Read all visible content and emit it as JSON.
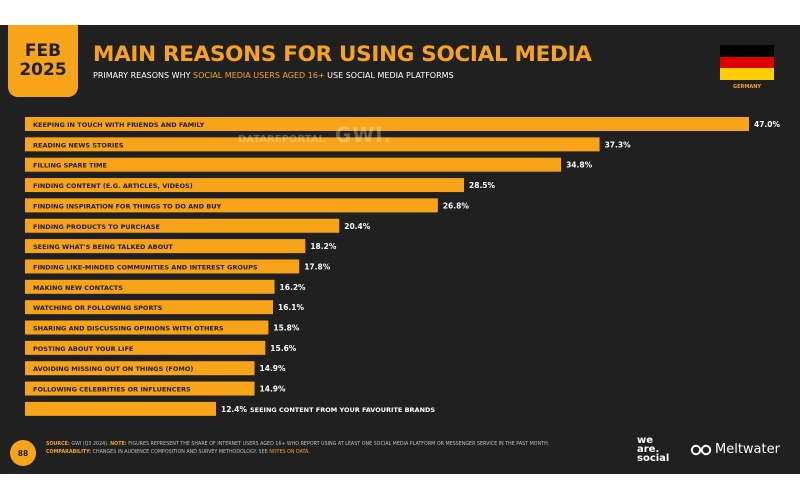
{
  "badge": {
    "month": "FEB",
    "year": "2025"
  },
  "title": "MAIN REASONS FOR USING SOCIAL MEDIA",
  "subtitle": {
    "before": "PRIMARY REASONS WHY ",
    "highlight": "SOCIAL MEDIA USERS AGED 16+",
    "after": " USE SOCIAL MEDIA PLATFORMS"
  },
  "country": "GERMANY",
  "flag_colors": [
    "#000000",
    "#dd0000",
    "#ffce00"
  ],
  "watermark": {
    "left": "DATAREPORTAL",
    "right": "GWI."
  },
  "chart_data": {
    "type": "bar",
    "orientation": "horizontal",
    "categories": [
      "KEEPING IN TOUCH WITH FRIENDS AND FAMILY",
      "READING NEWS STORIES",
      "FILLING SPARE TIME",
      "FINDING CONTENT (E.G. ARTICLES, VIDEOS)",
      "FINDING INSPIRATION FOR THINGS TO DO AND BUY",
      "FINDING PRODUCTS TO PURCHASE",
      "SEEING WHAT'S BEING TALKED ABOUT",
      "FINDING LIKE-MINDED COMMUNITIES AND INTEREST GROUPS",
      "MAKING NEW CONTACTS",
      "WATCHING OR FOLLOWING SPORTS",
      "SHARING AND DISCUSSING OPINIONS WITH OTHERS",
      "POSTING ABOUT YOUR LIFE",
      "AVOIDING MISSING OUT ON THINGS (FOMO)",
      "FOLLOWING CELEBRITIES OR INFLUENCERS",
      "SEEING CONTENT FROM YOUR FAVOURITE BRANDS"
    ],
    "values": [
      47.0,
      37.3,
      34.8,
      28.5,
      26.8,
      20.4,
      18.2,
      17.8,
      16.2,
      16.1,
      15.8,
      15.6,
      14.9,
      14.9,
      12.4
    ],
    "value_labels": [
      "47.0%",
      "37.3%",
      "34.8%",
      "28.5%",
      "26.8%",
      "20.4%",
      "18.2%",
      "17.8%",
      "16.2%",
      "16.1%",
      "15.8%",
      "15.6%",
      "14.9%",
      "14.9%",
      "12.4%"
    ],
    "xlim": [
      0,
      47
    ],
    "bar_color": "#f7a418"
  },
  "footer": {
    "page": "88",
    "source_label": "SOURCE:",
    "source_text": " GWI (Q3 2024). ",
    "note_label": "NOTE:",
    "note_text": " FIGURES REPRESENT THE SHARE OF INTERNET USERS AGED 16+ WHO REPORT USING AT LEAST ONE SOCIAL MEDIA PLATFORM OR MESSENGER SERVICE IN THE PAST MONTH.",
    "comparability_label": "COMPARABILITY:",
    "comparability_text": " CHANGES IN AUDIENCE COMPOSITION AND SURVEY METHODOLOGY. SEE ",
    "comparability_link": "NOTES ON DATA",
    "comparability_end": "."
  },
  "logos": {
    "we": "we",
    "are": "are.",
    "social": "social",
    "meltwater": "Meltwater"
  }
}
